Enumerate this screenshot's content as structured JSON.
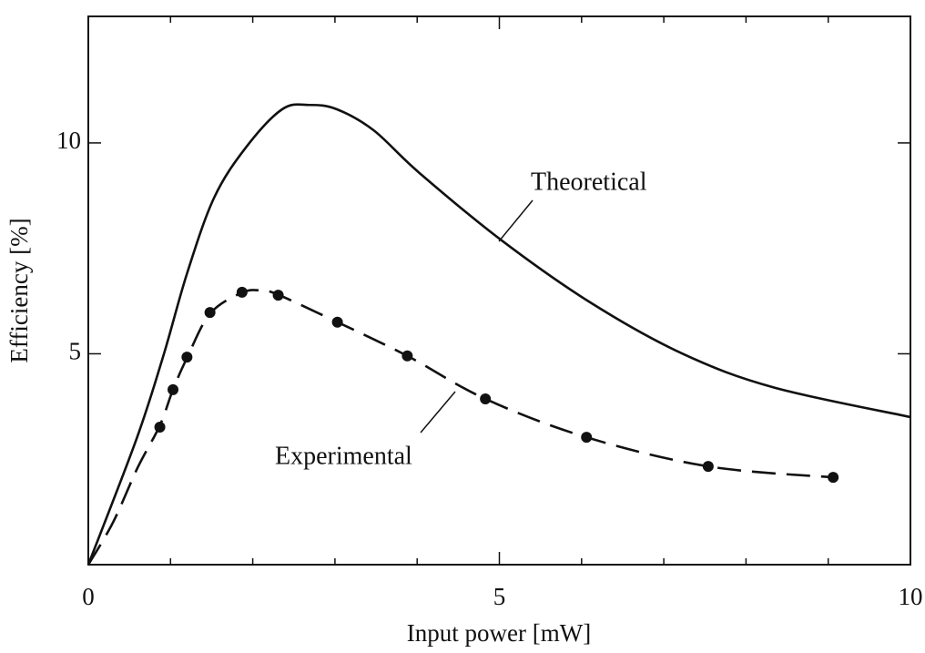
{
  "chart_data": {
    "type": "line",
    "xlabel": "Input power [mW]",
    "ylabel": "Efficiency [%]",
    "xlim": [
      0,
      10
    ],
    "ylim": [
      0,
      13
    ],
    "xticks": [
      0,
      5,
      10
    ],
    "xminor": [
      1,
      2,
      3,
      4,
      6,
      7,
      8,
      9
    ],
    "yticks": [
      5,
      10
    ],
    "series": [
      {
        "name": "Theoretical",
        "color": "#111111",
        "style": "solid",
        "x": [
          0,
          0.59,
          0.92,
          1.2,
          1.53,
          1.92,
          2.36,
          2.69,
          3.02,
          3.47,
          4.02,
          5.02,
          6.12,
          7.23,
          8.34,
          10
        ],
        "values": [
          0,
          3.0,
          5.0,
          6.9,
          8.7,
          9.9,
          10.8,
          10.9,
          10.8,
          10.3,
          9.3,
          7.7,
          6.2,
          5.0,
          4.2,
          3.5
        ]
      },
      {
        "name": "Experimental",
        "color": "#111111",
        "style": "dashed",
        "markers": true,
        "x": [
          0.87,
          1.03,
          1.2,
          1.48,
          1.87,
          2.31,
          3.03,
          3.88,
          4.83,
          6.06,
          7.54,
          9.06
        ],
        "values": [
          3.26,
          4.15,
          4.92,
          5.98,
          6.46,
          6.39,
          5.75,
          4.95,
          3.93,
          3.02,
          2.33,
          2.07
        ],
        "fit_x": [
          0,
          0.3,
          0.6,
          0.87,
          1.03,
          1.2,
          1.48,
          1.87,
          2.1,
          2.31,
          3.03,
          3.88,
          4.83,
          6.06,
          7.54,
          9.06
        ],
        "fit_values": [
          0,
          1.0,
          2.3,
          3.3,
          4.15,
          4.9,
          5.95,
          6.45,
          6.5,
          6.4,
          5.75,
          4.95,
          3.93,
          3.02,
          2.33,
          2.07
        ]
      }
    ]
  }
}
